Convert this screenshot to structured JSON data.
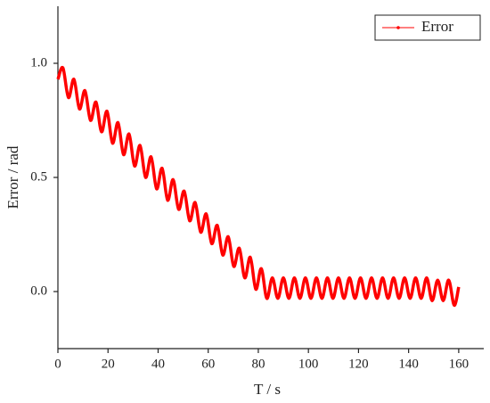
{
  "chart_data": {
    "type": "line",
    "x_label": "T / s",
    "y_label": "Error / rad",
    "x": [
      0,
      2.0,
      4.2,
      6.4,
      8.6,
      10.8,
      13.0,
      15.2,
      17.4,
      19.6,
      21.8,
      24.0,
      26.2,
      28.4,
      30.6,
      32.8,
      35.0,
      37.2,
      39.4,
      41.6,
      43.8,
      46.0,
      48.2,
      50.4,
      52.6,
      54.8,
      57.0,
      59.2,
      61.4,
      63.6,
      65.8,
      68.0,
      70.2,
      72.4,
      74.6,
      76.8,
      79.0,
      81.2,
      83.4,
      85.6,
      87.8,
      90.0,
      92.2,
      94.4,
      96.6,
      98.8,
      101.0,
      103.2,
      105.4,
      107.6,
      109.8,
      112.0,
      114.2,
      116.4,
      118.6,
      120.8,
      123.0,
      125.2,
      127.4,
      129.6,
      131.8,
      134.0,
      136.2,
      138.4,
      140.6,
      142.8,
      145.0,
      147.2,
      149.4,
      151.6,
      153.8,
      156.0,
      158.2,
      160.0
    ],
    "series": [
      {
        "name": "Error",
        "color": "#ff0000",
        "values": [
          0.93,
          0.98,
          0.85,
          0.93,
          0.8,
          0.88,
          0.75,
          0.83,
          0.7,
          0.79,
          0.65,
          0.74,
          0.6,
          0.69,
          0.55,
          0.64,
          0.5,
          0.59,
          0.45,
          0.54,
          0.4,
          0.49,
          0.36,
          0.44,
          0.31,
          0.39,
          0.26,
          0.34,
          0.21,
          0.29,
          0.16,
          0.24,
          0.11,
          0.19,
          0.06,
          0.15,
          0.01,
          0.1,
          -0.03,
          0.06,
          -0.03,
          0.06,
          -0.03,
          0.06,
          -0.03,
          0.06,
          -0.03,
          0.06,
          -0.03,
          0.06,
          -0.03,
          0.06,
          -0.03,
          0.06,
          -0.03,
          0.06,
          -0.03,
          0.06,
          -0.03,
          0.06,
          -0.03,
          0.06,
          -0.03,
          0.06,
          -0.03,
          0.06,
          -0.03,
          0.06,
          -0.04,
          0.05,
          -0.04,
          0.05,
          -0.06,
          0.02
        ]
      }
    ],
    "xlim": [
      0,
      170
    ],
    "xticks": [
      0,
      20,
      40,
      60,
      80,
      100,
      120,
      140,
      160
    ],
    "ylim": [
      -0.25,
      1.25
    ],
    "yticks": [
      {
        "value": 0,
        "label": "0.0"
      },
      {
        "value": 0.5,
        "label": "0.5"
      },
      {
        "value": 1,
        "label": "1.0"
      }
    ],
    "legend": "upper right"
  }
}
